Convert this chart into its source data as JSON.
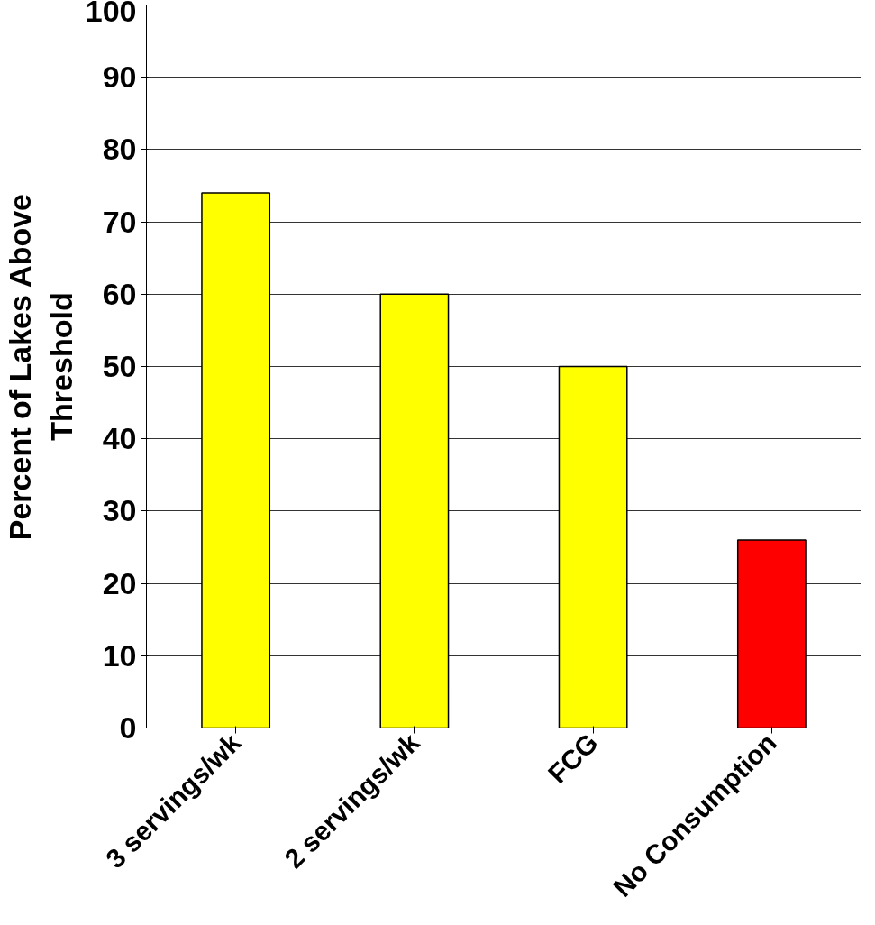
{
  "chart_data": {
    "type": "bar",
    "categories": [
      "3 servings/wk",
      "2 servings/wk",
      "FCG",
      "No Consumption"
    ],
    "values": [
      74,
      60,
      50,
      26
    ],
    "colors": [
      "#ffff00",
      "#ffff00",
      "#ffff00",
      "#ff0000"
    ],
    "ylabel": "Percent of Lakes Above\nThreshold",
    "ylim": [
      0,
      100
    ],
    "yticks": [
      0,
      10,
      20,
      30,
      40,
      50,
      60,
      70,
      80,
      90,
      100
    ],
    "grid": "y"
  }
}
